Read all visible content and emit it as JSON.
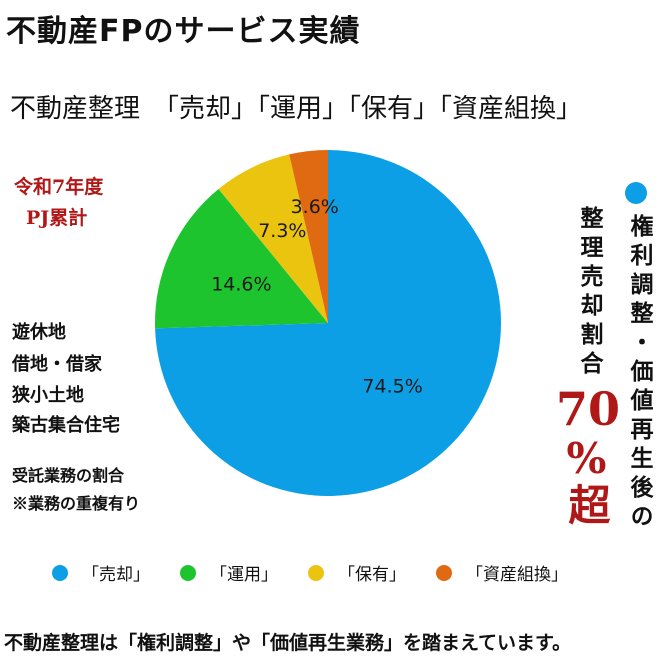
{
  "title": "不動産FPのサービス実績",
  "subtitle": "不動産整理　「売却」「運用」「保有」「資産組換」",
  "period": {
    "line1": "令和7年度",
    "line2": "PJ累計"
  },
  "categories_text": [
    "遊休地",
    "借地・借家",
    "狭小土地",
    "築古集合住宅"
  ],
  "notes": [
    "受託業務の割合",
    "※業務の重複有り"
  ],
  "side_text": {
    "right": "権利調整・価値再生後の",
    "middle": "整理売却割合",
    "big_value": "70",
    "big_suffix": "%超"
  },
  "colors": {
    "baikyaku": "#0d9fe5",
    "unyou": "#1ec42e",
    "hoyuu": "#ebc40f",
    "shisan": "#e06a12",
    "accent_red": "#b01818"
  },
  "footer": "不動産整理は「権利調整」や「価値再生業務」を踏まえています。",
  "chart_data": {
    "type": "pie",
    "categories": [
      "「売却」",
      "「運用」",
      "「保有」",
      "「資産組換」"
    ],
    "values": [
      74.5,
      14.6,
      7.3,
      3.6
    ],
    "labels": [
      "74.5%",
      "14.6%",
      "7.3%",
      "3.6%"
    ],
    "colors": [
      "#0d9fe5",
      "#1ec42e",
      "#ebc40f",
      "#e06a12"
    ],
    "start": "12 o'clock",
    "direction": "clockwise",
    "legend": "bottom"
  }
}
